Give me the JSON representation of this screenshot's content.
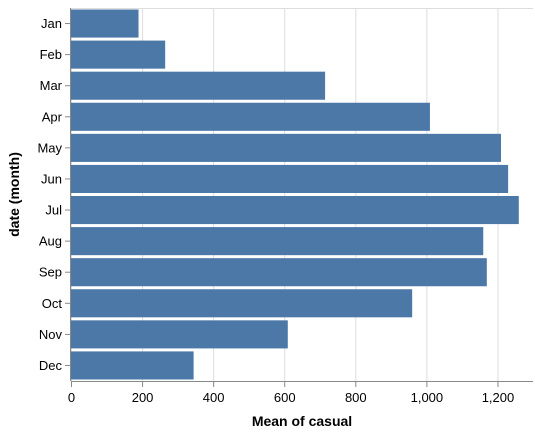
{
  "chart_data": {
    "type": "bar",
    "orientation": "horizontal",
    "categories": [
      "Jan",
      "Feb",
      "Mar",
      "Apr",
      "May",
      "Jun",
      "Jul",
      "Aug",
      "Sep",
      "Oct",
      "Nov",
      "Dec"
    ],
    "values": [
      190,
      265,
      715,
      1010,
      1210,
      1230,
      1260,
      1160,
      1170,
      960,
      610,
      345
    ],
    "xlabel": "Mean of casual",
    "ylabel": "date (month)",
    "xlim": [
      0,
      1300
    ],
    "x_ticks": [
      0,
      200,
      400,
      600,
      800,
      1000,
      1200
    ],
    "x_tick_labels": [
      "0",
      "200",
      "400",
      "600",
      "800",
      "1,000",
      "1,200"
    ],
    "grid": true,
    "bar_color": "#4c78a8",
    "grid_color": "#dddddd",
    "axis_color": "#888888"
  }
}
